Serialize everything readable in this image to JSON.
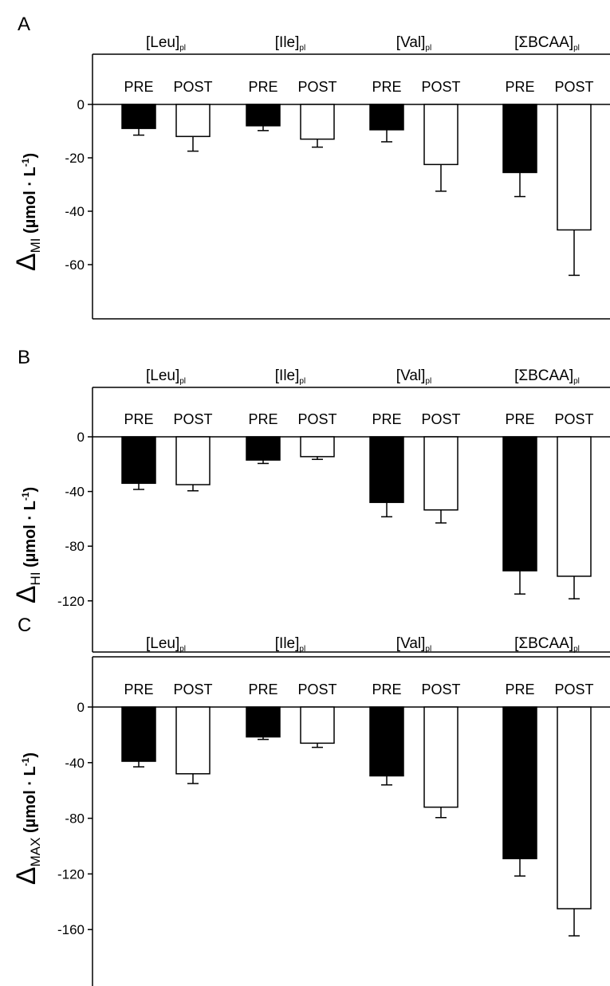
{
  "chart_data": [
    {
      "type": "bar",
      "panel": "A",
      "ylabel": {
        "delta": "Δ",
        "sub": "MI",
        "unit": " (µmol · L",
        "sup": "-1",
        "close": ")"
      },
      "yticks": [
        0,
        -20,
        -40,
        -60
      ],
      "ylim": [
        -80,
        20
      ],
      "groups": [
        {
          "label": "[Leu]",
          "sub": "pl",
          "bars": [
            {
              "label": "PRE",
              "value": -9,
              "err": 2.5
            },
            {
              "label": "POST",
              "value": -12,
              "err": 5.5
            }
          ]
        },
        {
          "label": "[Ile]",
          "sub": "pl",
          "bars": [
            {
              "label": "PRE",
              "value": -8,
              "err": 1.8
            },
            {
              "label": "POST",
              "value": -13,
              "err": 3
            }
          ]
        },
        {
          "label": "[Val]",
          "sub": "pl",
          "bars": [
            {
              "label": "PRE",
              "value": -9.5,
              "err": 4.5
            },
            {
              "label": "POST",
              "value": -22.5,
              "err": 10
            }
          ]
        },
        {
          "label": "[ΣBCAA]",
          "sub": "pl",
          "bars": [
            {
              "label": "PRE",
              "value": -25.5,
              "err": 9
            },
            {
              "label": "POST",
              "value": -47,
              "err": 17
            }
          ]
        }
      ]
    },
    {
      "type": "bar",
      "panel": "B",
      "ylabel": {
        "delta": "Δ",
        "sub": "HI",
        "unit": " (µmol · L",
        "sup": "-1",
        "close": ")"
      },
      "yticks": [
        0,
        -40,
        -80,
        -120
      ],
      "ylim": [
        -160,
        40
      ],
      "groups": [
        {
          "label": "[Leu]",
          "sub": "pl",
          "bars": [
            {
              "label": "PRE",
              "value": -34,
              "err": 4.5
            },
            {
              "label": "POST",
              "value": -35,
              "err": 4.5
            }
          ]
        },
        {
          "label": "[Ile]",
          "sub": "pl",
          "bars": [
            {
              "label": "PRE",
              "value": -17,
              "err": 2.5
            },
            {
              "label": "POST",
              "value": -14.5,
              "err": 2
            }
          ]
        },
        {
          "label": "[Val]",
          "sub": "pl",
          "bars": [
            {
              "label": "PRE",
              "value": -48,
              "err": 10.5
            },
            {
              "label": "POST",
              "value": -53.5,
              "err": 9.5
            }
          ]
        },
        {
          "label": "[ΣBCAA]",
          "sub": "pl",
          "bars": [
            {
              "label": "PRE",
              "value": -98,
              "err": 17
            },
            {
              "label": "POST",
              "value": -102,
              "err": 16.5
            }
          ]
        }
      ]
    },
    {
      "type": "bar",
      "panel": "C",
      "ylabel": {
        "delta": "Δ",
        "sub": "MAX",
        "unit": " (µmol · L",
        "sup": "-1",
        "close": ")"
      },
      "yticks": [
        0,
        -40,
        -80,
        -120,
        -160
      ],
      "ylim": [
        -185,
        40
      ],
      "groups": [
        {
          "label": "[Leu]",
          "sub": "pl",
          "bars": [
            {
              "label": "PRE",
              "value": -39,
              "err": 4
            },
            {
              "label": "POST",
              "value": -48,
              "err": 7
            }
          ]
        },
        {
          "label": "[Ile]",
          "sub": "pl",
          "bars": [
            {
              "label": "PRE",
              "value": -21.5,
              "err": 1.8
            },
            {
              "label": "POST",
              "value": -26,
              "err": 3
            }
          ]
        },
        {
          "label": "[Val]",
          "sub": "pl",
          "bars": [
            {
              "label": "PRE",
              "value": -49.5,
              "err": 6.5
            },
            {
              "label": "POST",
              "value": -72,
              "err": 7.5
            }
          ]
        },
        {
          "label": "[ΣBCAA]",
          "sub": "pl",
          "bars": [
            {
              "label": "PRE",
              "value": -109,
              "err": 12.5
            },
            {
              "label": "POST",
              "value": -145,
              "err": 19.5
            }
          ]
        }
      ]
    }
  ],
  "colors": {
    "PRE": "#000000",
    "POST": "#ffffff",
    "stroke": "#000000"
  }
}
